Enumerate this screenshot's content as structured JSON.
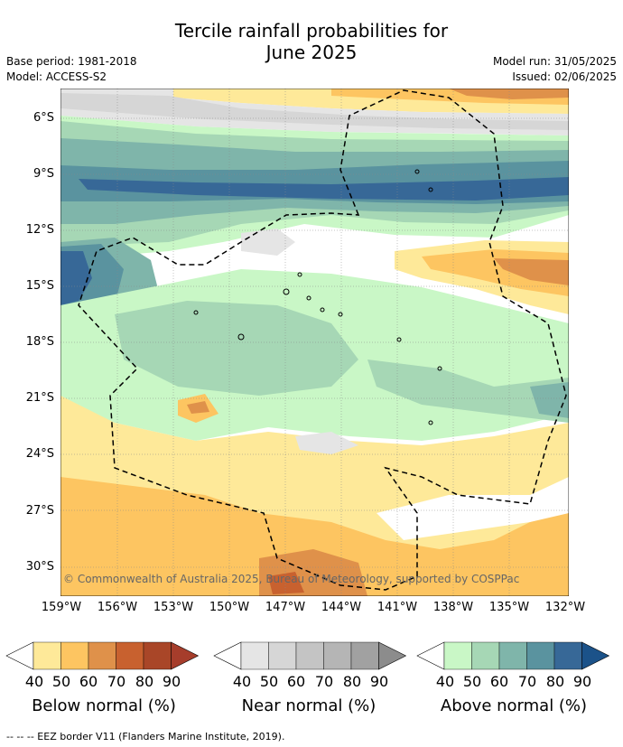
{
  "title_line1": "Tercile rainfall probabilities for",
  "title_line2": "June 2025",
  "meta": {
    "base_period": "Base period: 1981-2018",
    "model": "Model: ACCESS-S2",
    "model_run": "Model run: 31/05/2025",
    "issued": "Issued: 02/06/2025"
  },
  "map": {
    "lat_labels": [
      "6°S",
      "9°S",
      "12°S",
      "15°S",
      "18°S",
      "21°S",
      "24°S",
      "27°S",
      "30°S"
    ],
    "lon_labels": [
      "159°W",
      "156°W",
      "153°W",
      "150°W",
      "147°W",
      "144°W",
      "141°W",
      "138°W",
      "135°W",
      "132°W"
    ],
    "copyright": "© Commonwealth of Australia 2025, Bureau of Meteorology, supported by COSPPac"
  },
  "colorbars": [
    {
      "name": "below",
      "label": "Below normal (%)",
      "colors": [
        "#ffffff",
        "#fee999",
        "#fdc561",
        "#df914a",
        "#c8612f",
        "#a94628",
        "#a63d2b"
      ],
      "ticks": [
        "40",
        "50",
        "60",
        "70",
        "80",
        "90"
      ]
    },
    {
      "name": "near",
      "label": "Near normal (%)",
      "colors": [
        "#ffffff",
        "#e5e5e5",
        "#d6d6d6",
        "#c4c4c4",
        "#b5b5b5",
        "#a1a1a1",
        "#8c8c8c"
      ],
      "ticks": [
        "40",
        "50",
        "60",
        "70",
        "80",
        "90"
      ]
    },
    {
      "name": "above",
      "label": "Above normal (%)",
      "colors": [
        "#ffffff",
        "#c9f7c6",
        "#a6d7b5",
        "#7fb5aa",
        "#5a939f",
        "#376897",
        "#1b5289"
      ],
      "ticks": [
        "40",
        "50",
        "60",
        "70",
        "80",
        "90"
      ]
    }
  ],
  "footnote": "-- -- -- EEZ border V11 (Flanders Marine Institute, 2019)."
}
